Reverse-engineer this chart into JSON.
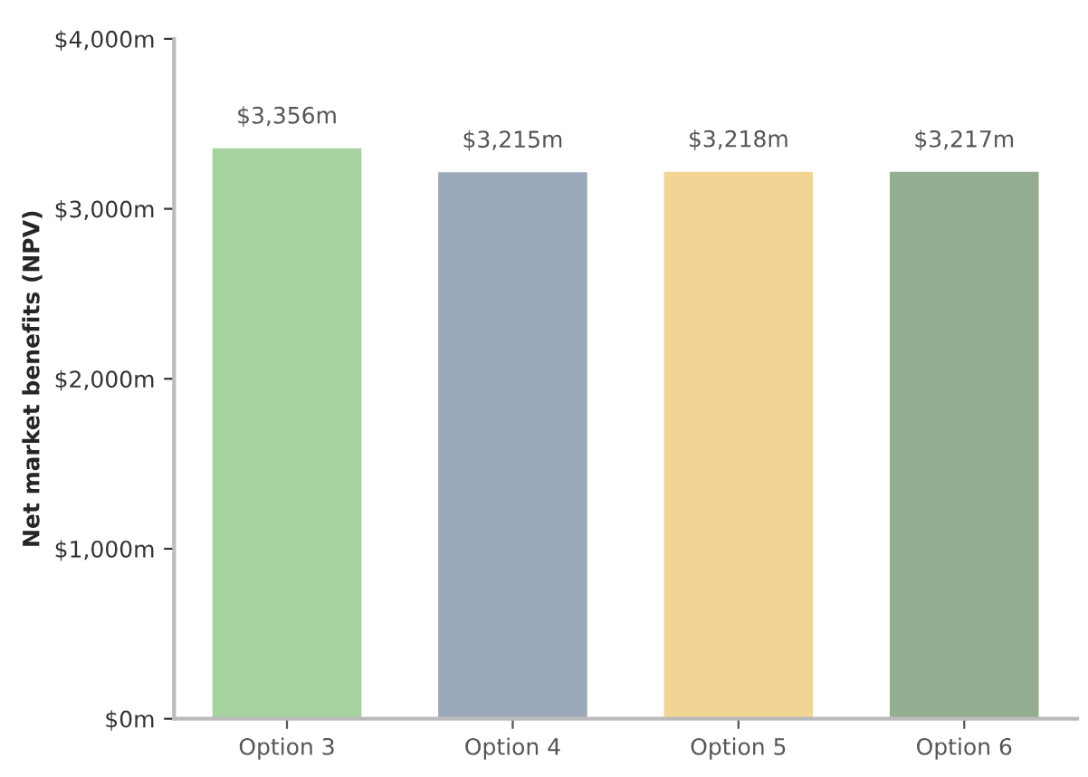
{
  "chart_data": {
    "type": "bar",
    "ylabel": "Net market benefits (NPV)",
    "categories": [
      "Option 3",
      "Option 4",
      "Option 5",
      "Option 6"
    ],
    "values": [
      3356,
      3215,
      3218,
      3217
    ],
    "colors": [
      "#a5d3a0",
      "#9aa8ba",
      "#f2d595",
      "#93ae90"
    ],
    "value_labels": [
      "$3,356m",
      "$3,215m",
      "$3,218m",
      "$3,217m"
    ],
    "ylim": [
      0,
      4000
    ],
    "yticks": [
      {
        "value": 0,
        "label": "$0m"
      },
      {
        "value": 1000,
        "label": "$1,000m"
      },
      {
        "value": 2000,
        "label": "$2,000m"
      },
      {
        "value": 3000,
        "label": "$3,000m"
      },
      {
        "value": 4000,
        "label": "$4,000m"
      }
    ],
    "grid": false,
    "legend": false
  }
}
